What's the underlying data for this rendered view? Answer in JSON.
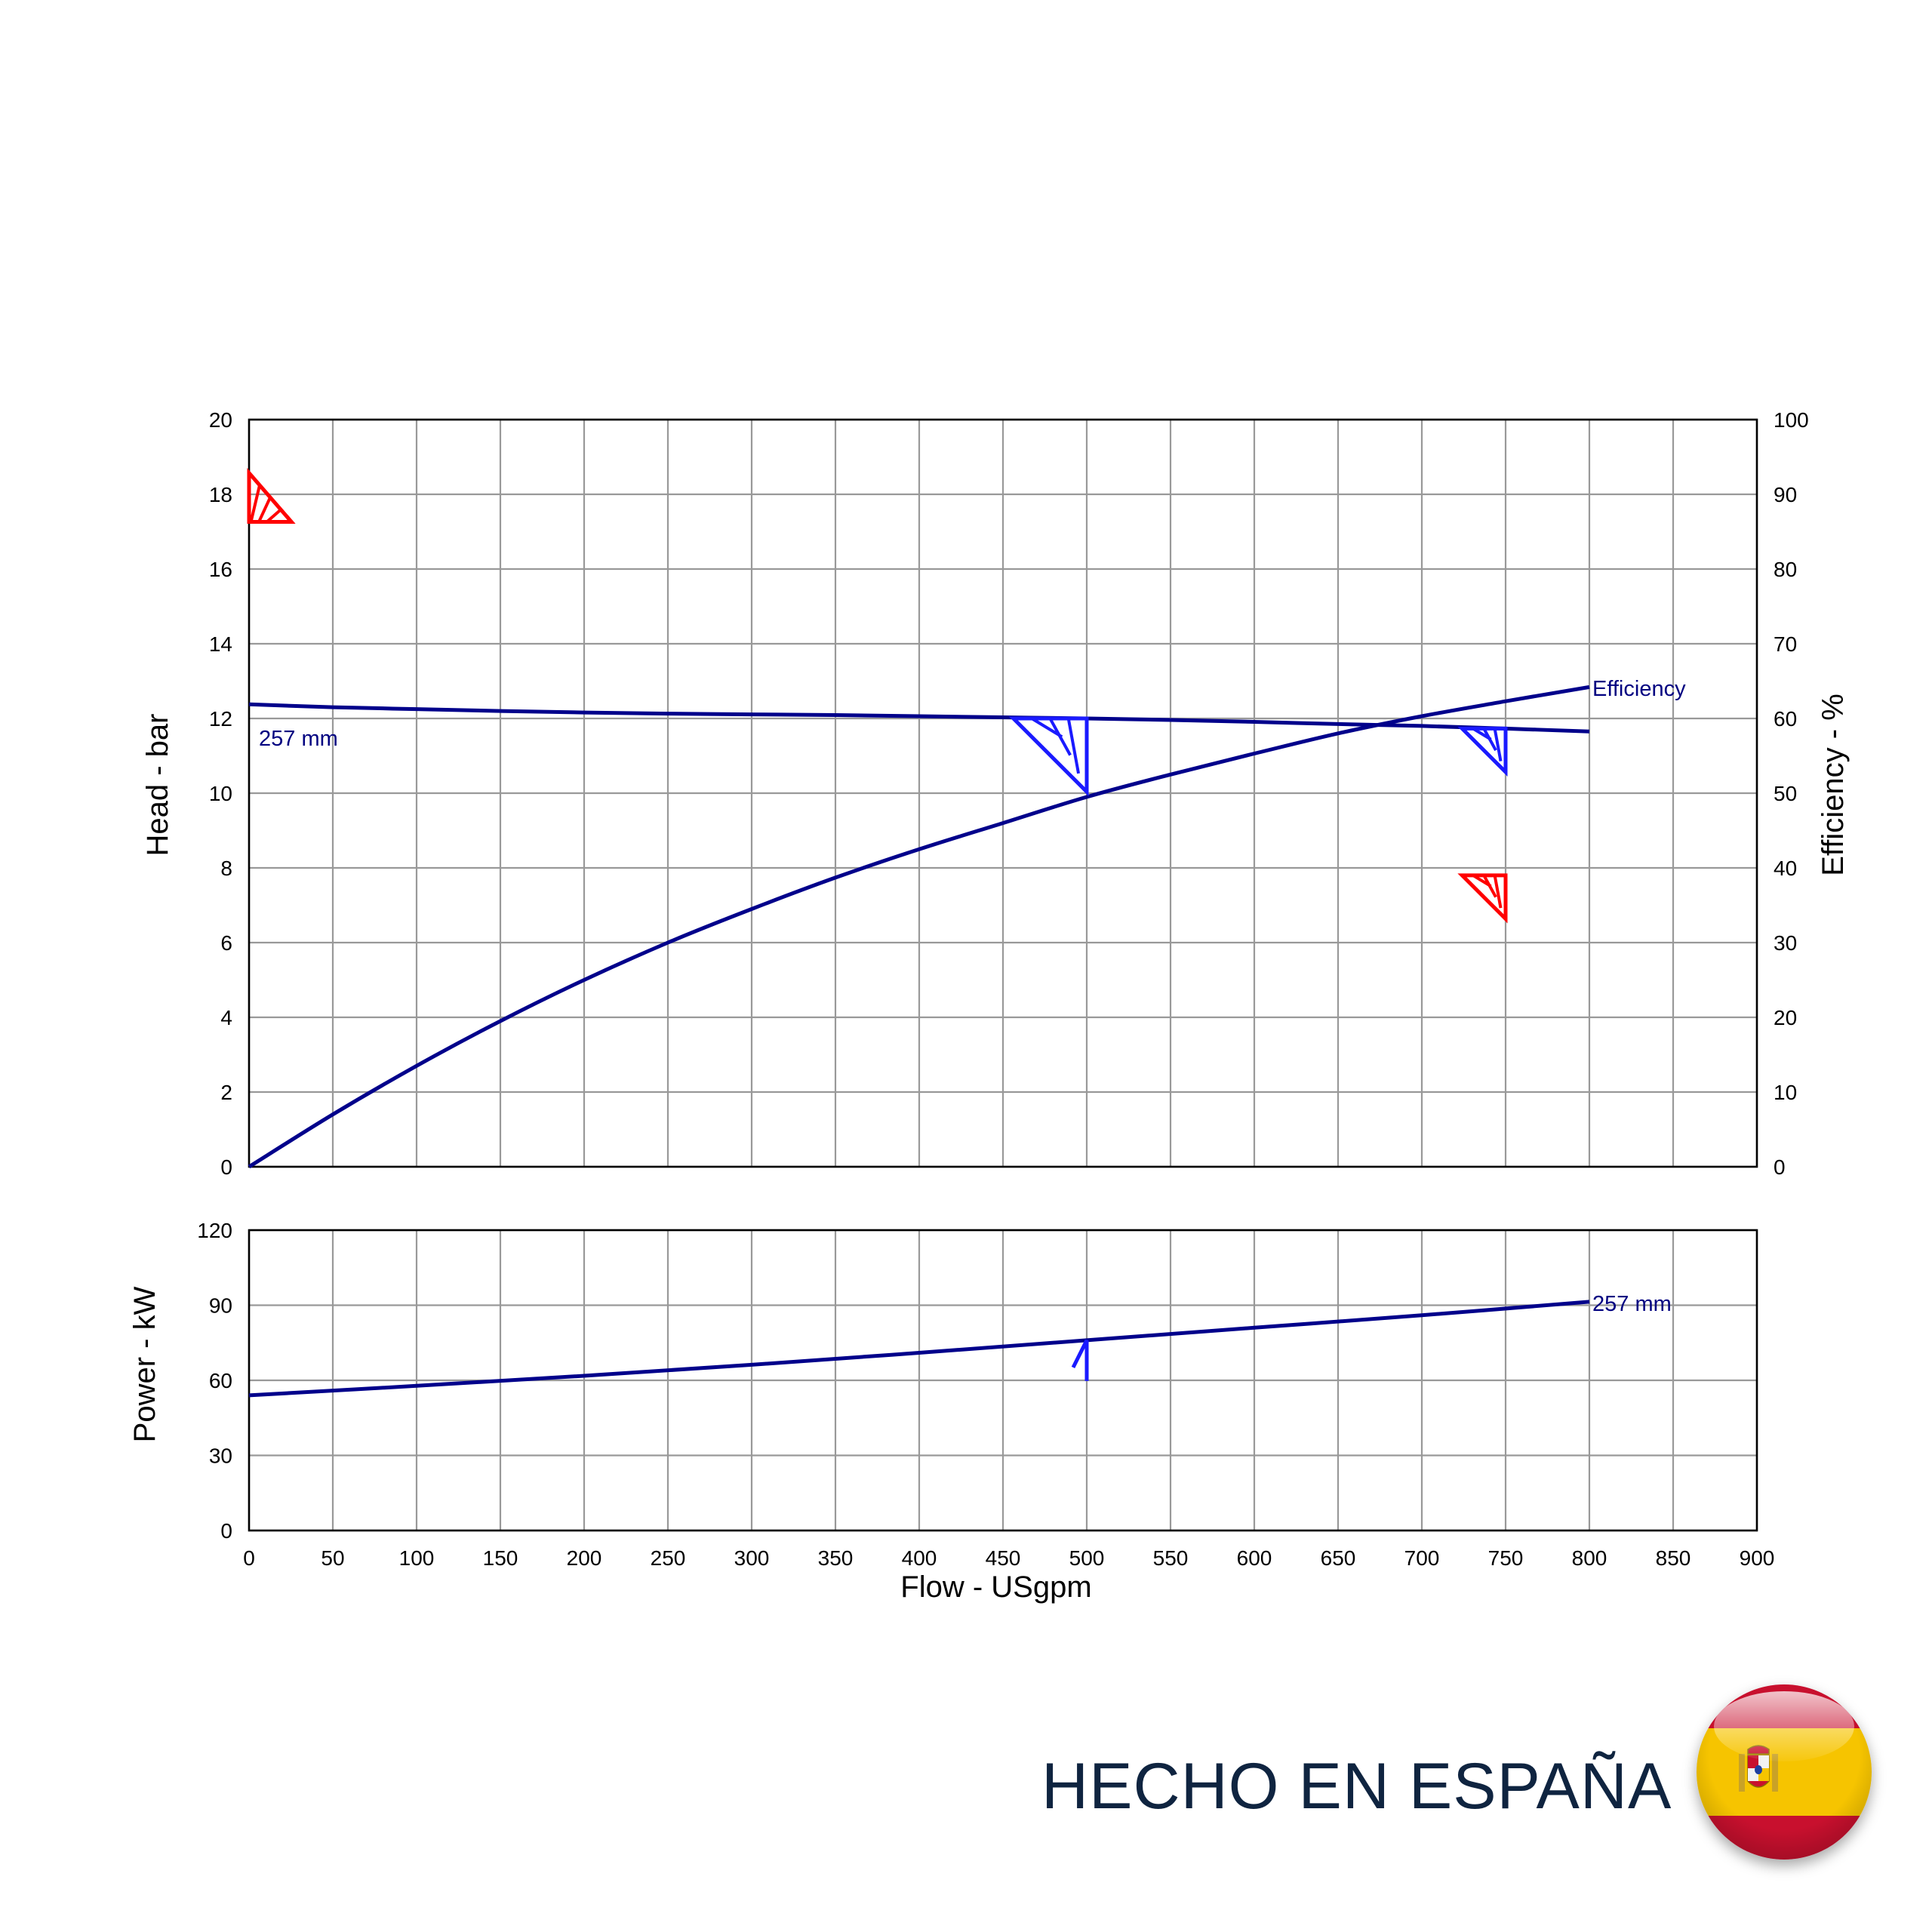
{
  "chart_data": [
    {
      "type": "line",
      "name": "head-efficiency",
      "x_ticks": [
        "0",
        "50",
        "100",
        "150",
        "200",
        "250",
        "300",
        "350",
        "400",
        "450",
        "500",
        "550",
        "600",
        "650",
        "700",
        "750",
        "800",
        "850",
        "900"
      ],
      "y_left_ticks": [
        "0",
        "2",
        "4",
        "6",
        "8",
        "10",
        "12",
        "14",
        "16",
        "18",
        "20"
      ],
      "y_right_ticks": [
        "0",
        "10",
        "20",
        "30",
        "40",
        "50",
        "60",
        "70",
        "80",
        "90",
        "100"
      ],
      "ylabel": "Head - bar",
      "ylabel_right": "Efficiency - %",
      "xlim": [
        0,
        900
      ],
      "ylim": [
        0,
        20
      ],
      "ylim_right": [
        0,
        100
      ],
      "grid": true,
      "colors": {
        "curve": "#00008b",
        "marker_bep": "#1a1aff",
        "marker_limit": "#ff0000",
        "grid": "#999999"
      },
      "series": [
        {
          "label": "257 mm",
          "axis": "left",
          "x": [
            0,
            50,
            100,
            150,
            200,
            250,
            300,
            350,
            400,
            450,
            500,
            550,
            600,
            650,
            700,
            750,
            800
          ],
          "y": [
            12.38,
            12.3,
            12.25,
            12.2,
            12.16,
            12.13,
            12.11,
            12.09,
            12.06,
            12.03,
            12.0,
            11.96,
            11.91,
            11.85,
            11.8,
            11.73,
            11.65
          ]
        },
        {
          "label": "Efficiency",
          "axis": "right",
          "x": [
            0,
            50,
            100,
            150,
            200,
            250,
            300,
            350,
            400,
            450,
            500,
            550,
            600,
            650,
            700,
            750,
            800
          ],
          "y": [
            0,
            7,
            13.5,
            19.5,
            25,
            30,
            34.5,
            38.7,
            42.5,
            46,
            49.5,
            52.5,
            55.3,
            58,
            60.3,
            62.3,
            64.2
          ]
        }
      ],
      "markers": [
        {
          "x": 0,
          "y": 17.7,
          "color": "limit",
          "size": 1.0
        },
        {
          "x": 500,
          "y": 12.0,
          "color": "bep",
          "size": 1.35
        },
        {
          "x": 750,
          "y": 11.73,
          "color": "bep",
          "size": 0.8
        },
        {
          "x": 750,
          "y": 7.8,
          "color": "limit",
          "size": 0.8
        }
      ]
    },
    {
      "type": "line",
      "name": "power",
      "x_ticks": [
        "0",
        "50",
        "100",
        "150",
        "200",
        "250",
        "300",
        "350",
        "400",
        "450",
        "500",
        "550",
        "600",
        "650",
        "700",
        "750",
        "800",
        "850",
        "900"
      ],
      "y_ticks": [
        "0",
        "30",
        "60",
        "90",
        "120"
      ],
      "xlabel": "Flow - USgpm",
      "ylabel": "Power - kW",
      "xlim": [
        0,
        900
      ],
      "ylim": [
        0,
        120
      ],
      "grid": true,
      "series": [
        {
          "label": "257 mm",
          "x": [
            0,
            100,
            200,
            300,
            400,
            500,
            600,
            700,
            800
          ],
          "y": [
            54,
            57.8,
            61.8,
            66.2,
            71,
            76,
            81,
            86,
            91.4
          ]
        }
      ],
      "markers": [
        {
          "x": 500,
          "y": 76,
          "type": "arrow"
        }
      ]
    }
  ],
  "footer": {
    "text": "HECHO EN ESPAÑA",
    "flag_icon": "spain-flag-icon"
  }
}
